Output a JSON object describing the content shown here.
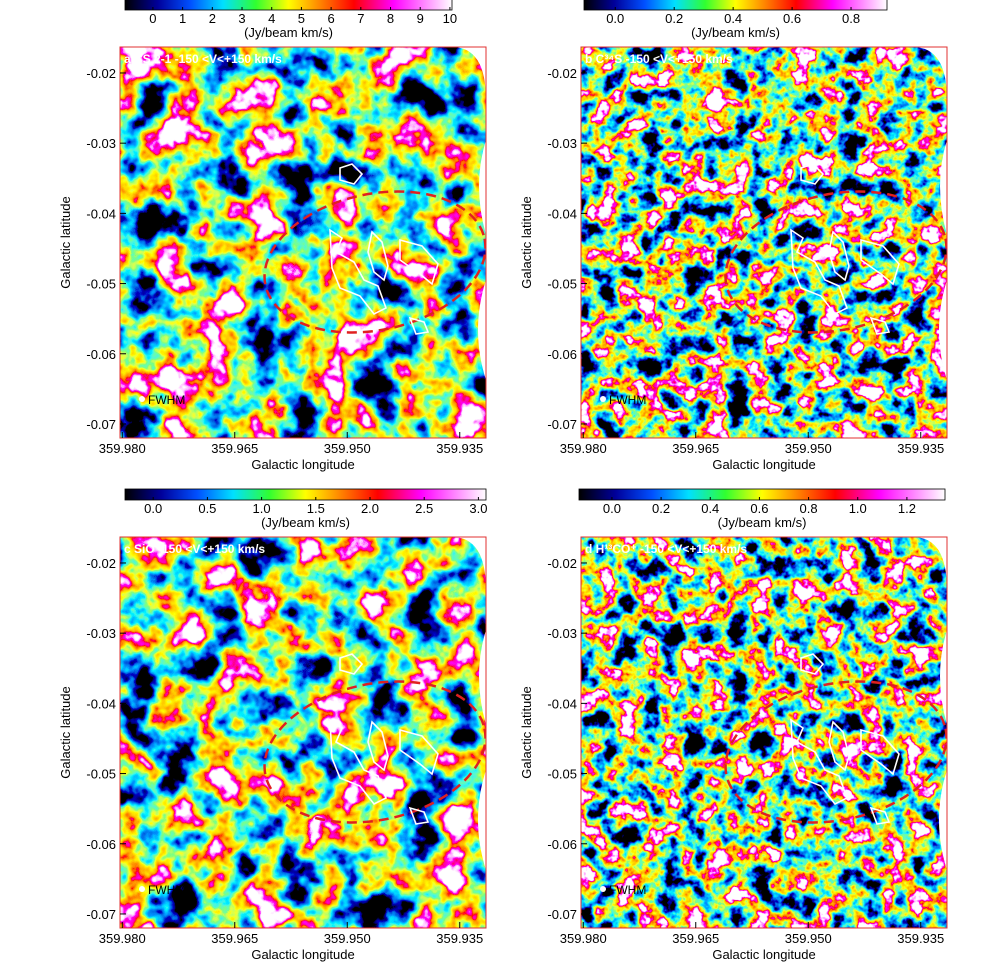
{
  "chart_data": [
    {
      "type": "image",
      "title": "a CS 2-1  -150 <V<+150 km/s",
      "annotation": "FWHM",
      "xlabel": "Galactic longitude",
      "ylabel": "Galactic latitude",
      "xlim": [
        359.9803,
        359.9315
      ],
      "ylim": [
        -0.072,
        -0.0163
      ],
      "xticks": [
        {
          "value": 359.98,
          "label": "359.980"
        },
        {
          "value": 359.965,
          "label": "359.965"
        },
        {
          "value": 359.95,
          "label": "359.950"
        },
        {
          "value": 359.935,
          "label": "359.935"
        }
      ],
      "yticks": [
        -0.02,
        -0.03,
        -0.04,
        -0.05,
        -0.06,
        -0.07
      ],
      "colorbar": {
        "label": "(Jy/beam km/s)",
        "lim": [
          -0.94,
          10.07
        ],
        "ticks": [
          0,
          1,
          2,
          3,
          4,
          5,
          6,
          7,
          8,
          9,
          10
        ]
      }
    },
    {
      "type": "image",
      "title": "b C³⁴S -150 <V<+150 km/s",
      "annotation": "FWHM",
      "xlabel": "Galactic longitude",
      "ylabel": "Galactic latitude",
      "xlim": [
        359.9803,
        359.9315
      ],
      "ylim": [
        -0.072,
        -0.0163
      ],
      "xticks": [
        {
          "value": 359.98,
          "label": "359.980"
        },
        {
          "value": 359.965,
          "label": "359.965"
        },
        {
          "value": 359.95,
          "label": "359.950"
        },
        {
          "value": 359.935,
          "label": "359.935"
        }
      ],
      "yticks": [
        -0.02,
        -0.03,
        -0.04,
        -0.05,
        -0.06,
        -0.07
      ],
      "colorbar": {
        "label": "(Jy/beam km/s)",
        "lim": [
          -0.106,
          0.922
        ],
        "ticks": [
          {
            "value": 0,
            "label": "0.0"
          },
          0.2,
          0.4,
          0.6,
          0.8
        ]
      }
    },
    {
      "type": "image",
      "title": "c SiO -150 <V<+150 km/s",
      "annotation": "FWHM",
      "xlabel": "Galactic longitude",
      "ylabel": "Galactic latitude",
      "xlim": [
        359.9803,
        359.9315
      ],
      "ylim": [
        -0.072,
        -0.0163
      ],
      "xticks": [
        {
          "value": 359.98,
          "label": "359.980"
        },
        {
          "value": 359.965,
          "label": "359.965"
        },
        {
          "value": 359.95,
          "label": "359.950"
        },
        {
          "value": 359.935,
          "label": "359.935"
        }
      ],
      "yticks": [
        -0.02,
        -0.03,
        -0.04,
        -0.05,
        -0.06,
        -0.07
      ],
      "colorbar": {
        "label": "(Jy/beam km/s)",
        "lim": [
          -0.26,
          3.07
        ],
        "ticks": [
          {
            "value": 0,
            "label": "0.0"
          },
          0.5,
          {
            "value": 1,
            "label": "1.0"
          },
          1.5,
          {
            "value": 2,
            "label": "2.0"
          },
          2.5,
          {
            "value": 3,
            "label": "3.0"
          }
        ]
      }
    },
    {
      "type": "image",
      "title": "d H¹³CO⁺  -150 <V<+150 km/s",
      "annotation": "FWHM",
      "xlabel": "Galactic longitude",
      "ylabel": "Galactic latitude",
      "xlim": [
        359.9803,
        359.9315
      ],
      "ylim": [
        -0.072,
        -0.0163
      ],
      "xticks": [
        {
          "value": 359.98,
          "label": "359.980"
        },
        {
          "value": 359.965,
          "label": "359.965"
        },
        {
          "value": 359.95,
          "label": "359.950"
        },
        {
          "value": 359.935,
          "label": "359.935"
        }
      ],
      "yticks": [
        -0.02,
        -0.03,
        -0.04,
        -0.05,
        -0.06,
        -0.07
      ],
      "colorbar": {
        "label": "(Jy/beam km/s)",
        "lim": [
          -0.134,
          1.355
        ],
        "ticks": [
          {
            "value": 0,
            "label": "0.0"
          },
          0.2,
          0.4,
          0.6,
          0.8,
          {
            "value": 1,
            "label": "1.0"
          },
          1.2
        ]
      }
    }
  ]
}
